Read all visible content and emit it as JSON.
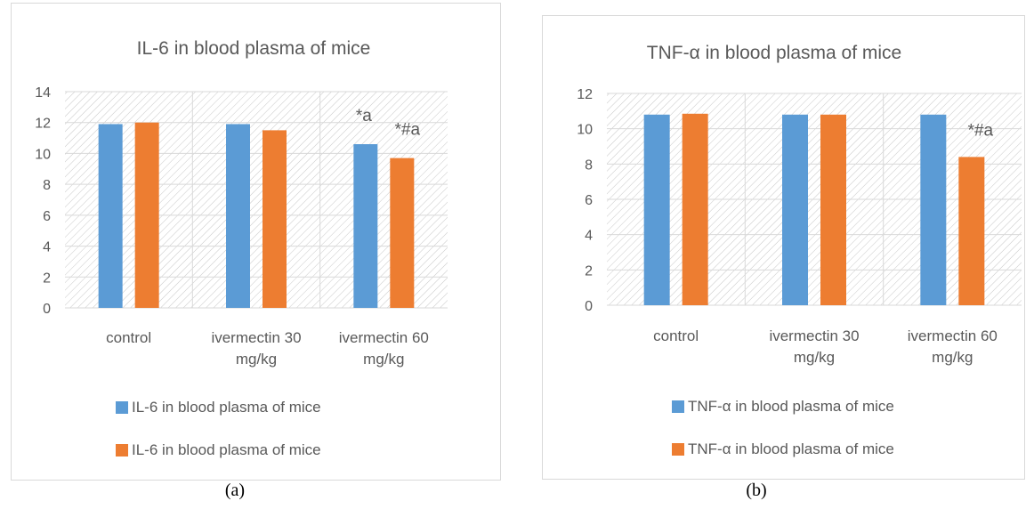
{
  "colors": {
    "series1": "#5b9bd5",
    "series2": "#ed7d31",
    "axis_text": "#595959",
    "grid": "#d9d9d9",
    "hatch": "#c8c8c8"
  },
  "chart_data": [
    {
      "type": "bar",
      "panel_label": "(a)",
      "title": "IL-6 in blood plasma of mice",
      "categories": [
        "control",
        "ivermectin 30 mg/kg",
        "ivermectin 60 mg/kg"
      ],
      "series": [
        {
          "name": "IL-6 in blood plasma of mice",
          "values": [
            11.9,
            11.9,
            10.6
          ]
        },
        {
          "name": "IL-6 in blood plasma of mice",
          "values": [
            12.0,
            11.5,
            9.7
          ]
        }
      ],
      "annotations": [
        {
          "category": 2,
          "series": 0,
          "text": "*a"
        },
        {
          "category": 2,
          "series": 1,
          "text": "*#a"
        }
      ],
      "ylim": [
        0,
        14
      ],
      "yticks": [
        0,
        2,
        4,
        6,
        8,
        10,
        12,
        14
      ],
      "grid": true,
      "legend_position": "bottom"
    },
    {
      "type": "bar",
      "panel_label": "(b)",
      "title": "TNF-α in blood plasma of mice",
      "categories": [
        "control",
        "ivermectin 30 mg/kg",
        "ivermectin 60 mg/kg"
      ],
      "series": [
        {
          "name": "TNF-α in blood plasma of mice",
          "values": [
            10.8,
            10.8,
            10.8
          ]
        },
        {
          "name": "TNF-α in blood plasma of mice",
          "values": [
            10.85,
            10.8,
            8.4
          ]
        }
      ],
      "annotations": [
        {
          "category": 2,
          "series": 1,
          "text": "*#a"
        }
      ],
      "ylim": [
        0,
        12
      ],
      "yticks": [
        0,
        2,
        4,
        6,
        8,
        10,
        12
      ],
      "grid": true,
      "legend_position": "bottom"
    }
  ]
}
